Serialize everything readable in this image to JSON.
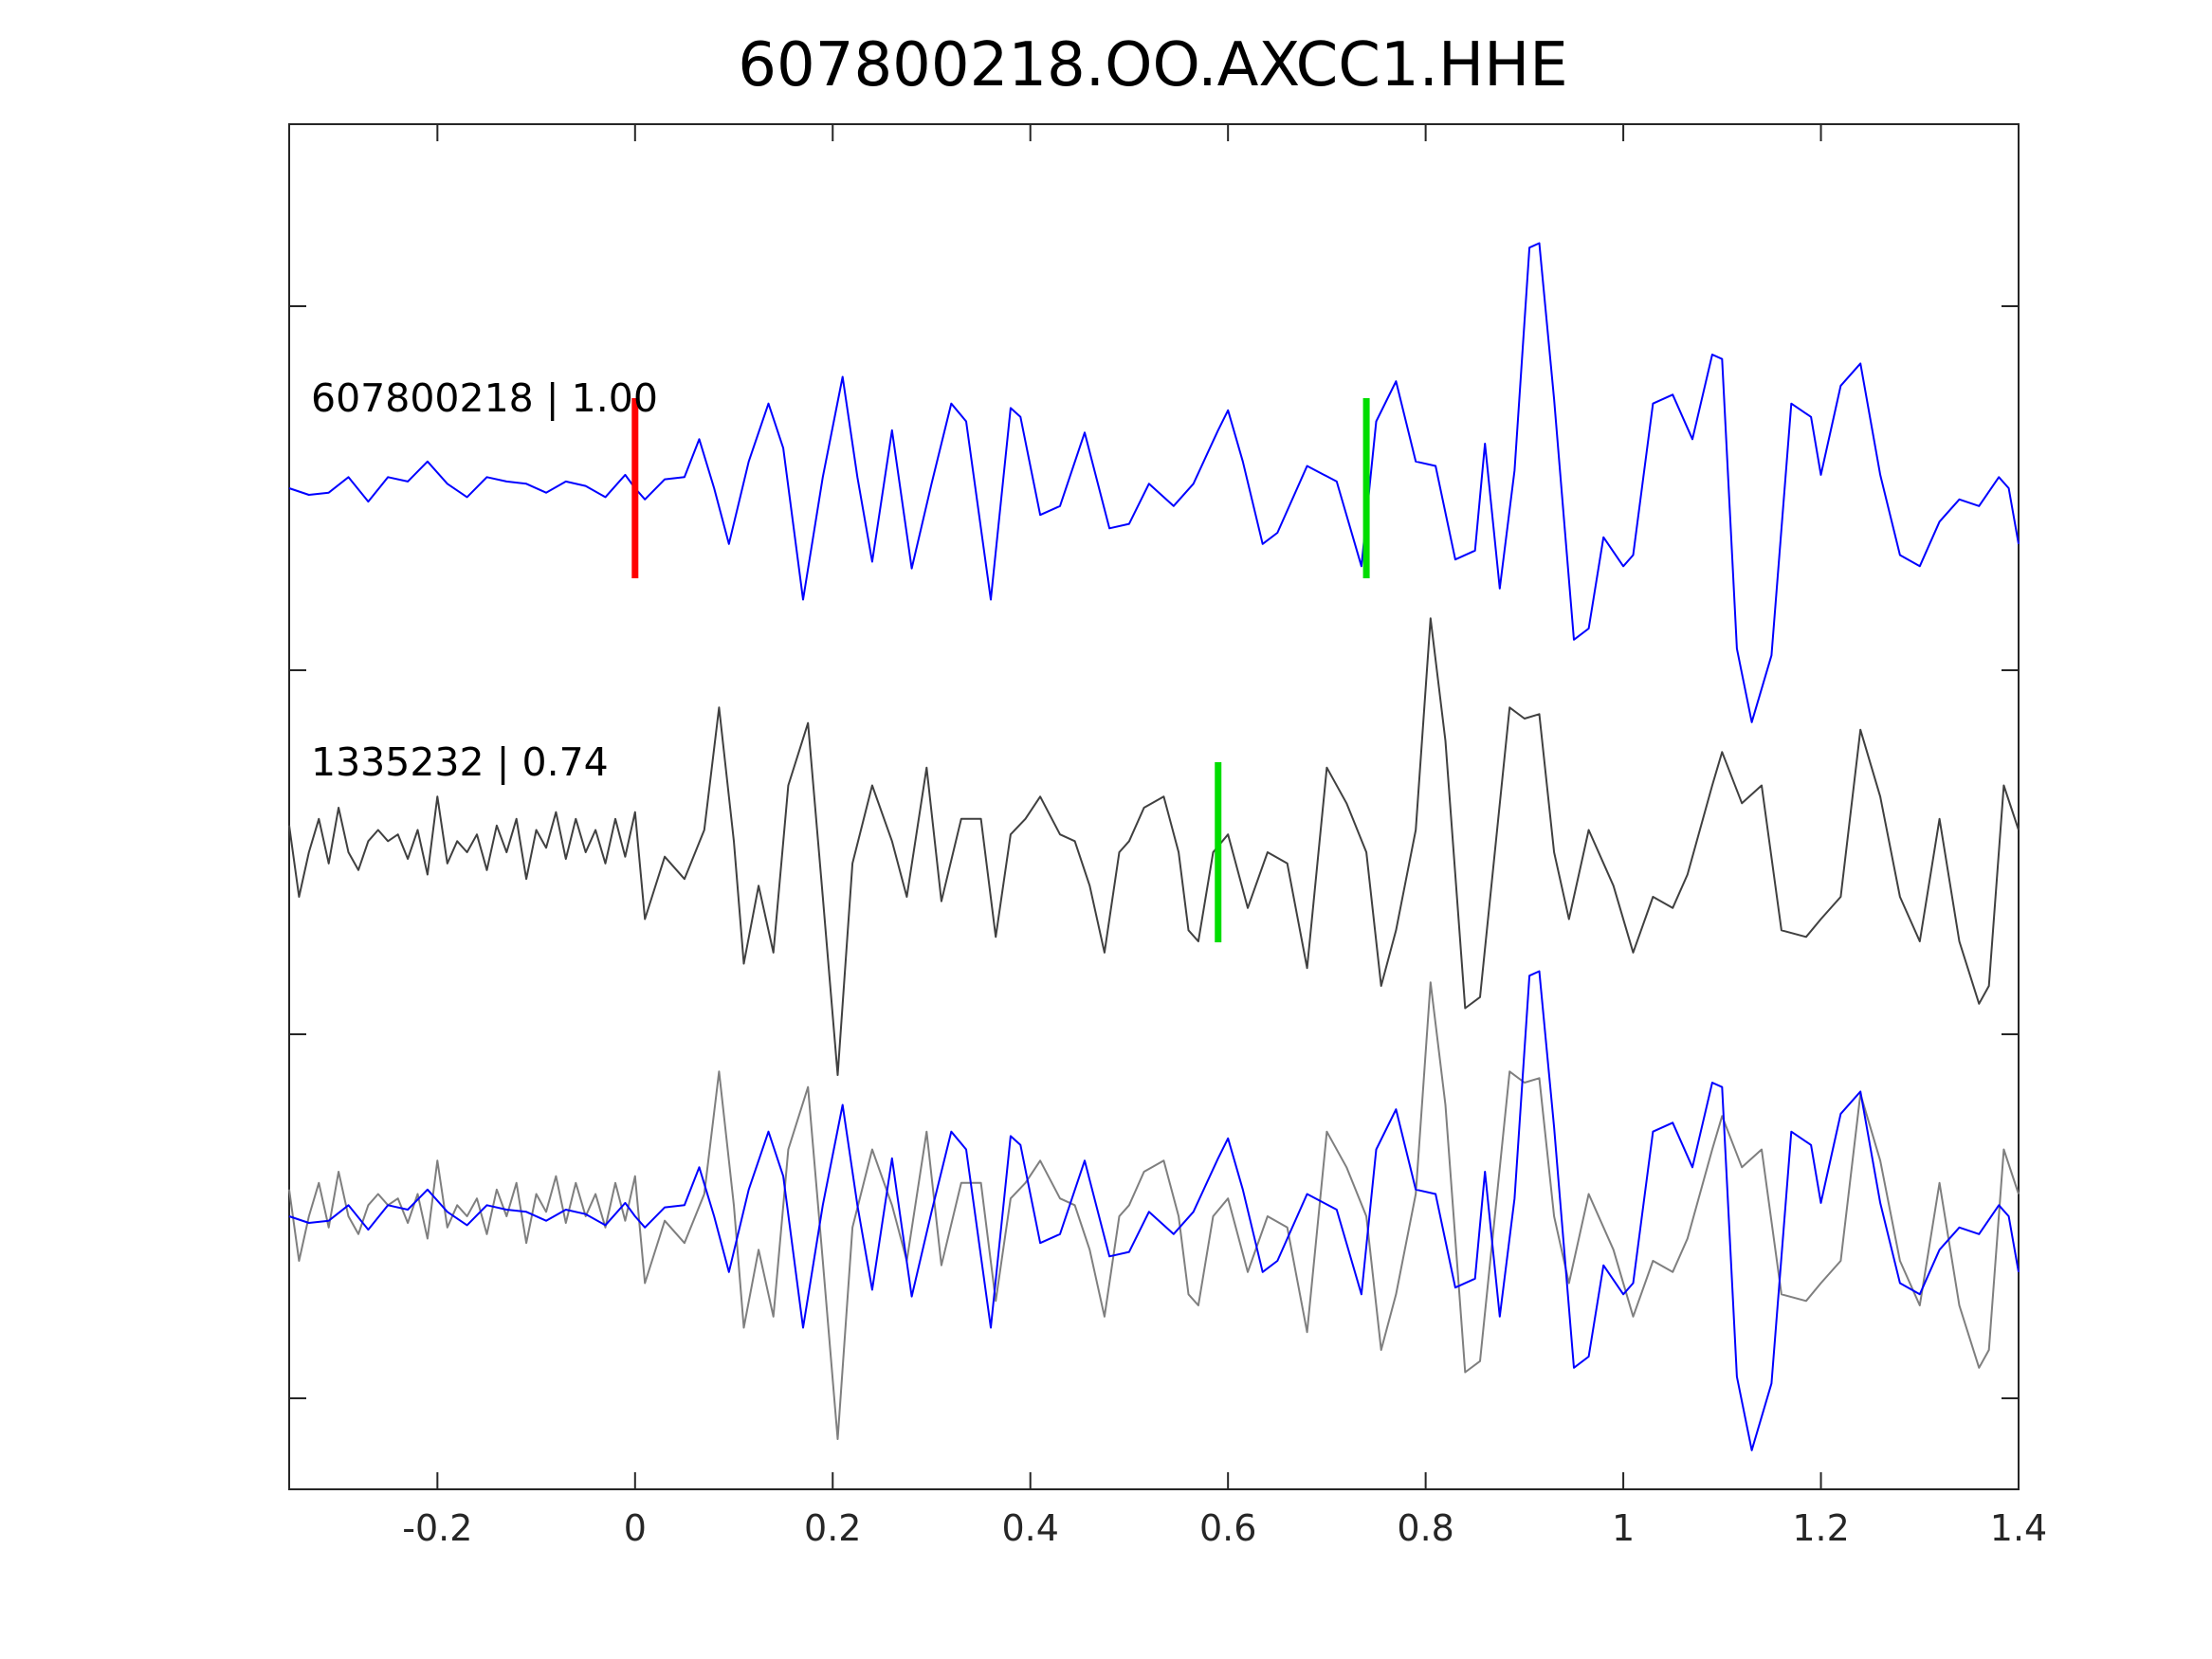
{
  "chart_data": {
    "type": "line",
    "title": "607800218.OO.AXCC1.HHE",
    "xlabel": "",
    "ylabel": "",
    "xlim": [
      -0.35,
      1.4
    ],
    "x_ticks": [
      -0.2,
      0,
      0.2,
      0.4,
      0.6,
      0.8,
      1,
      1.2,
      1.4
    ],
    "x_tick_labels": [
      "-0.2",
      "0",
      "0.2",
      "0.4",
      "0.6",
      "0.8",
      "1",
      "1.2",
      "1.4"
    ],
    "grid": false,
    "traces": [
      {
        "label": "607800218 | 1.00",
        "color": "#0000ff",
        "pick_red": 0.0,
        "pick_green": 0.74,
        "points": [
          [
            -0.35,
            0.0
          ],
          [
            -0.33,
            -0.03
          ],
          [
            -0.31,
            -0.02
          ],
          [
            -0.29,
            0.05
          ],
          [
            -0.27,
            -0.06
          ],
          [
            -0.25,
            0.05
          ],
          [
            -0.23,
            0.03
          ],
          [
            -0.21,
            0.12
          ],
          [
            -0.19,
            0.02
          ],
          [
            -0.17,
            -0.04
          ],
          [
            -0.15,
            0.05
          ],
          [
            -0.13,
            0.03
          ],
          [
            -0.11,
            0.02
          ],
          [
            -0.09,
            -0.02
          ],
          [
            -0.07,
            0.03
          ],
          [
            -0.05,
            0.01
          ],
          [
            -0.03,
            -0.04
          ],
          [
            -0.01,
            0.06
          ],
          [
            0.0,
            0.0
          ],
          [
            0.01,
            -0.05
          ],
          [
            0.03,
            0.04
          ],
          [
            0.05,
            0.05
          ],
          [
            0.065,
            0.22
          ],
          [
            0.08,
            0.0
          ],
          [
            0.095,
            -0.25
          ],
          [
            0.115,
            0.12
          ],
          [
            0.135,
            0.38
          ],
          [
            0.15,
            0.18
          ],
          [
            0.17,
            -0.5
          ],
          [
            0.19,
            0.05
          ],
          [
            0.21,
            0.5
          ],
          [
            0.225,
            0.05
          ],
          [
            0.24,
            -0.33
          ],
          [
            0.26,
            0.26
          ],
          [
            0.28,
            -0.36
          ],
          [
            0.3,
            0.02
          ],
          [
            0.32,
            0.38
          ],
          [
            0.335,
            0.3
          ],
          [
            0.36,
            -0.5
          ],
          [
            0.38,
            0.36
          ],
          [
            0.39,
            0.32
          ],
          [
            0.41,
            -0.12
          ],
          [
            0.43,
            -0.08
          ],
          [
            0.455,
            0.25
          ],
          [
            0.48,
            -0.18
          ],
          [
            0.5,
            -0.16
          ],
          [
            0.52,
            0.02
          ],
          [
            0.545,
            -0.08
          ],
          [
            0.565,
            0.02
          ],
          [
            0.59,
            0.26
          ],
          [
            0.6,
            0.35
          ],
          [
            0.615,
            0.12
          ],
          [
            0.635,
            -0.25
          ],
          [
            0.65,
            -0.2
          ],
          [
            0.68,
            0.1
          ],
          [
            0.71,
            0.03
          ],
          [
            0.735,
            -0.35
          ],
          [
            0.75,
            0.3
          ],
          [
            0.77,
            0.48
          ],
          [
            0.79,
            0.12
          ],
          [
            0.81,
            0.1
          ],
          [
            0.83,
            -0.32
          ],
          [
            0.85,
            -0.28
          ],
          [
            0.86,
            0.2
          ],
          [
            0.875,
            -0.45
          ],
          [
            0.89,
            0.08
          ],
          [
            0.905,
            1.08
          ],
          [
            0.915,
            1.1
          ],
          [
            0.93,
            0.4
          ],
          [
            0.95,
            -0.68
          ],
          [
            0.965,
            -0.63
          ],
          [
            0.98,
            -0.22
          ],
          [
            1.0,
            -0.35
          ],
          [
            1.01,
            -0.3
          ],
          [
            1.03,
            0.38
          ],
          [
            1.05,
            0.42
          ],
          [
            1.07,
            0.22
          ],
          [
            1.09,
            0.6
          ],
          [
            1.1,
            0.58
          ],
          [
            1.115,
            -0.72
          ],
          [
            1.13,
            -1.05
          ],
          [
            1.15,
            -0.75
          ],
          [
            1.17,
            0.38
          ],
          [
            1.19,
            0.32
          ],
          [
            1.2,
            0.06
          ],
          [
            1.22,
            0.46
          ],
          [
            1.24,
            0.56
          ],
          [
            1.26,
            0.06
          ],
          [
            1.28,
            -0.3
          ],
          [
            1.3,
            -0.35
          ],
          [
            1.32,
            -0.15
          ],
          [
            1.34,
            -0.05
          ],
          [
            1.36,
            -0.08
          ],
          [
            1.38,
            0.05
          ],
          [
            1.39,
            0.0
          ],
          [
            1.4,
            -0.25
          ]
        ]
      },
      {
        "label": "1335232 | 0.74",
        "color": "#404040",
        "pick_green": 0.59,
        "points": [
          [
            -0.35,
            0.12
          ],
          [
            -0.34,
            -0.2
          ],
          [
            -0.33,
            0.0
          ],
          [
            -0.32,
            0.15
          ],
          [
            -0.31,
            -0.05
          ],
          [
            -0.3,
            0.2
          ],
          [
            -0.29,
            0.0
          ],
          [
            -0.28,
            -0.08
          ],
          [
            -0.27,
            0.05
          ],
          [
            -0.26,
            0.1
          ],
          [
            -0.25,
            0.05
          ],
          [
            -0.24,
            0.08
          ],
          [
            -0.23,
            -0.03
          ],
          [
            -0.22,
            0.1
          ],
          [
            -0.21,
            -0.1
          ],
          [
            -0.2,
            0.25
          ],
          [
            -0.19,
            -0.05
          ],
          [
            -0.18,
            0.05
          ],
          [
            -0.17,
            0.0
          ],
          [
            -0.16,
            0.08
          ],
          [
            -0.15,
            -0.08
          ],
          [
            -0.14,
            0.12
          ],
          [
            -0.13,
            0.0
          ],
          [
            -0.12,
            0.15
          ],
          [
            -0.11,
            -0.12
          ],
          [
            -0.1,
            0.1
          ],
          [
            -0.09,
            0.02
          ],
          [
            -0.08,
            0.18
          ],
          [
            -0.07,
            -0.03
          ],
          [
            -0.06,
            0.15
          ],
          [
            -0.05,
            0.0
          ],
          [
            -0.04,
            0.1
          ],
          [
            -0.03,
            -0.05
          ],
          [
            -0.02,
            0.15
          ],
          [
            -0.01,
            -0.02
          ],
          [
            0.0,
            0.18
          ],
          [
            0.01,
            -0.3
          ],
          [
            0.03,
            -0.02
          ],
          [
            0.05,
            -0.12
          ],
          [
            0.07,
            0.1
          ],
          [
            0.085,
            0.65
          ],
          [
            0.1,
            0.05
          ],
          [
            0.11,
            -0.5
          ],
          [
            0.125,
            -0.15
          ],
          [
            0.14,
            -0.45
          ],
          [
            0.155,
            0.3
          ],
          [
            0.175,
            0.58
          ],
          [
            0.19,
            -0.2
          ],
          [
            0.205,
            -1.0
          ],
          [
            0.22,
            -0.05
          ],
          [
            0.24,
            0.3
          ],
          [
            0.26,
            0.05
          ],
          [
            0.275,
            -0.2
          ],
          [
            0.295,
            0.38
          ],
          [
            0.31,
            -0.22
          ],
          [
            0.33,
            0.15
          ],
          [
            0.35,
            0.15
          ],
          [
            0.365,
            -0.38
          ],
          [
            0.38,
            0.08
          ],
          [
            0.395,
            0.15
          ],
          [
            0.41,
            0.25
          ],
          [
            0.43,
            0.08
          ],
          [
            0.445,
            0.05
          ],
          [
            0.46,
            -0.15
          ],
          [
            0.475,
            -0.45
          ],
          [
            0.49,
            0.0
          ],
          [
            0.5,
            0.05
          ],
          [
            0.515,
            0.2
          ],
          [
            0.535,
            0.25
          ],
          [
            0.55,
            0.0
          ],
          [
            0.56,
            -0.35
          ],
          [
            0.57,
            -0.4
          ],
          [
            0.585,
            0.0
          ],
          [
            0.6,
            0.08
          ],
          [
            0.62,
            -0.25
          ],
          [
            0.64,
            0.0
          ],
          [
            0.66,
            -0.05
          ],
          [
            0.68,
            -0.52
          ],
          [
            0.7,
            0.38
          ],
          [
            0.72,
            0.22
          ],
          [
            0.74,
            0.0
          ],
          [
            0.755,
            -0.6
          ],
          [
            0.77,
            -0.35
          ],
          [
            0.79,
            0.1
          ],
          [
            0.805,
            1.05
          ],
          [
            0.82,
            0.5
          ],
          [
            0.84,
            -0.7
          ],
          [
            0.855,
            -0.65
          ],
          [
            0.87,
            0.0
          ],
          [
            0.885,
            0.65
          ],
          [
            0.9,
            0.6
          ],
          [
            0.915,
            0.62
          ],
          [
            0.93,
            0.0
          ],
          [
            0.945,
            -0.3
          ],
          [
            0.965,
            0.1
          ],
          [
            0.99,
            -0.15
          ],
          [
            1.01,
            -0.45
          ],
          [
            1.03,
            -0.2
          ],
          [
            1.05,
            -0.25
          ],
          [
            1.065,
            -0.1
          ],
          [
            1.09,
            0.3
          ],
          [
            1.1,
            0.45
          ],
          [
            1.12,
            0.22
          ],
          [
            1.14,
            0.3
          ],
          [
            1.16,
            -0.35
          ],
          [
            1.185,
            -0.38
          ],
          [
            1.2,
            -0.3
          ],
          [
            1.22,
            -0.2
          ],
          [
            1.24,
            0.55
          ],
          [
            1.26,
            0.25
          ],
          [
            1.28,
            -0.2
          ],
          [
            1.3,
            -0.4
          ],
          [
            1.32,
            0.15
          ],
          [
            1.34,
            -0.4
          ],
          [
            1.36,
            -0.68
          ],
          [
            1.37,
            -0.6
          ],
          [
            1.385,
            0.3
          ],
          [
            1.4,
            0.1
          ]
        ]
      }
    ],
    "overlay": {
      "traces": [
        0,
        1
      ],
      "colors": [
        "#0000ff",
        "#7f7f7f"
      ]
    }
  }
}
